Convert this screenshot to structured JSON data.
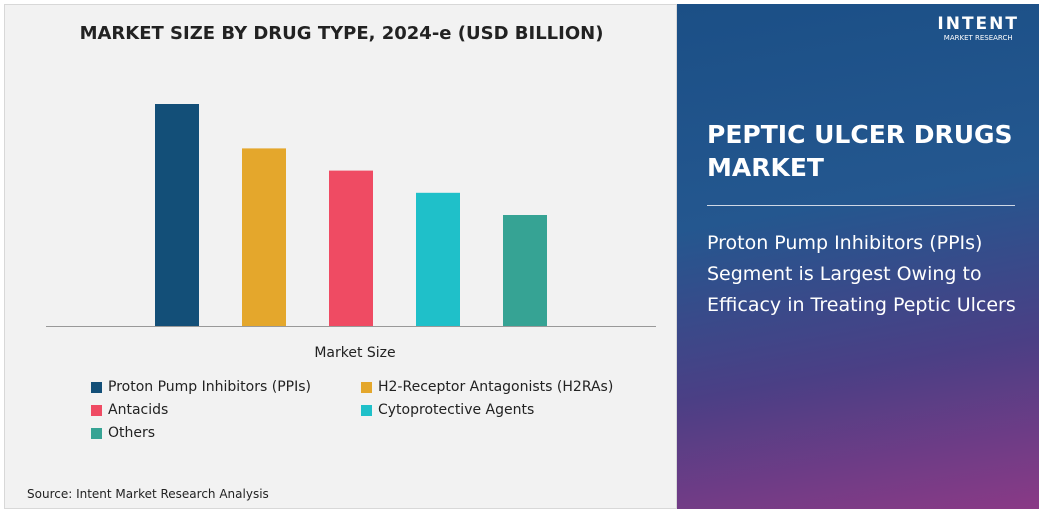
{
  "chart_data": {
    "type": "bar",
    "title": "MARKET SIZE BY DRUG TYPE, 2024-e (USD BILLION)",
    "xlabel": "Market Size",
    "ylabel": "",
    "categories": [
      "Proton Pump Inhibitors (PPIs)",
      "H2-Receptor Antagonists (H2RAs)",
      "Antacids",
      "Cytoprotective Agents",
      "Others"
    ],
    "values_relative": [
      1.0,
      0.8,
      0.7,
      0.6,
      0.5
    ],
    "colors": [
      "#134f78",
      "#e4a72c",
      "#ef4b63",
      "#1fc0c9",
      "#36a394"
    ],
    "grid": false,
    "legend": "bottom"
  },
  "source": "Source: Intent Market Research Analysis",
  "panel": {
    "logo_main": "INTENT",
    "logo_sub": "MARKET RESEARCH",
    "title": "PEPTIC ULCER DRUGS MARKET",
    "description": "Proton Pump Inhibitors (PPIs) Segment is Largest Owing to Efficacy in Treating Peptic Ulcers"
  }
}
